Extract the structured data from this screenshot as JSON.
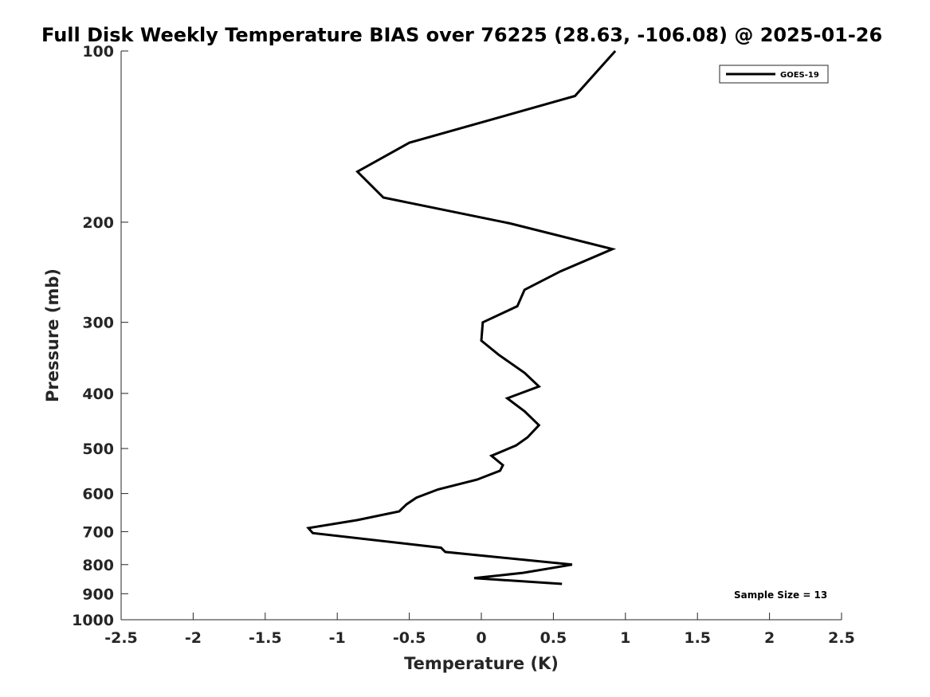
{
  "chart_data": {
    "type": "line",
    "title": "Full Disk Weekly Temperature BIAS over 76225 (28.63, -106.08) @ 2025-01-26",
    "xlabel": "Temperature (K)",
    "ylabel": "Pressure (mb)",
    "xlim": [
      -2.5,
      2.5
    ],
    "ylim": [
      100,
      1000
    ],
    "yscale": "log",
    "yreversed": true,
    "grid": false,
    "legend_position": "top-right",
    "x_ticks": [
      -2.5,
      -2,
      -1.5,
      -1,
      -0.5,
      0,
      0.5,
      1,
      1.5,
      2,
      2.5
    ],
    "x_tick_labels": [
      "-2.5",
      "-2",
      "-1.5",
      "-1",
      "-0.5",
      "0",
      "0.5",
      "1",
      "1.5",
      "2",
      "2.5"
    ],
    "y_ticks": [
      100,
      200,
      300,
      400,
      500,
      600,
      700,
      800,
      900,
      1000
    ],
    "y_tick_labels": [
      "100",
      "200",
      "300",
      "400",
      "500",
      "600",
      "700",
      "800",
      "900",
      "1000"
    ],
    "series": [
      {
        "name": "GOES-19",
        "color": "#000000",
        "points": [
          [
            0.93,
            100
          ],
          [
            0.65,
            120
          ],
          [
            -0.5,
            145
          ],
          [
            -0.86,
            163
          ],
          [
            -0.68,
            181
          ],
          [
            0.2,
            201
          ],
          [
            0.91,
            223
          ],
          [
            0.55,
            244
          ],
          [
            0.3,
            263
          ],
          [
            0.25,
            281
          ],
          [
            0.01,
            300
          ],
          [
            0.0,
            323
          ],
          [
            0.12,
            342
          ],
          [
            0.3,
            368
          ],
          [
            0.4,
            389
          ],
          [
            0.18,
            408
          ],
          [
            0.3,
            430
          ],
          [
            0.4,
            455
          ],
          [
            0.32,
            478
          ],
          [
            0.24,
            494
          ],
          [
            0.07,
            515
          ],
          [
            0.15,
            535
          ],
          [
            0.13,
            547
          ],
          [
            -0.03,
            567
          ],
          [
            -0.3,
            590
          ],
          [
            -0.45,
            610
          ],
          [
            -0.52,
            627
          ],
          [
            -0.57,
            645
          ],
          [
            -0.86,
            668
          ],
          [
            -1.2,
            690
          ],
          [
            -1.17,
            704
          ],
          [
            -0.28,
            747
          ],
          [
            -0.25,
            760
          ],
          [
            0.63,
            800
          ],
          [
            0.29,
            827
          ],
          [
            -0.05,
            845
          ],
          [
            0.56,
            865
          ]
        ]
      }
    ],
    "annotation": "Sample Size = 13"
  }
}
